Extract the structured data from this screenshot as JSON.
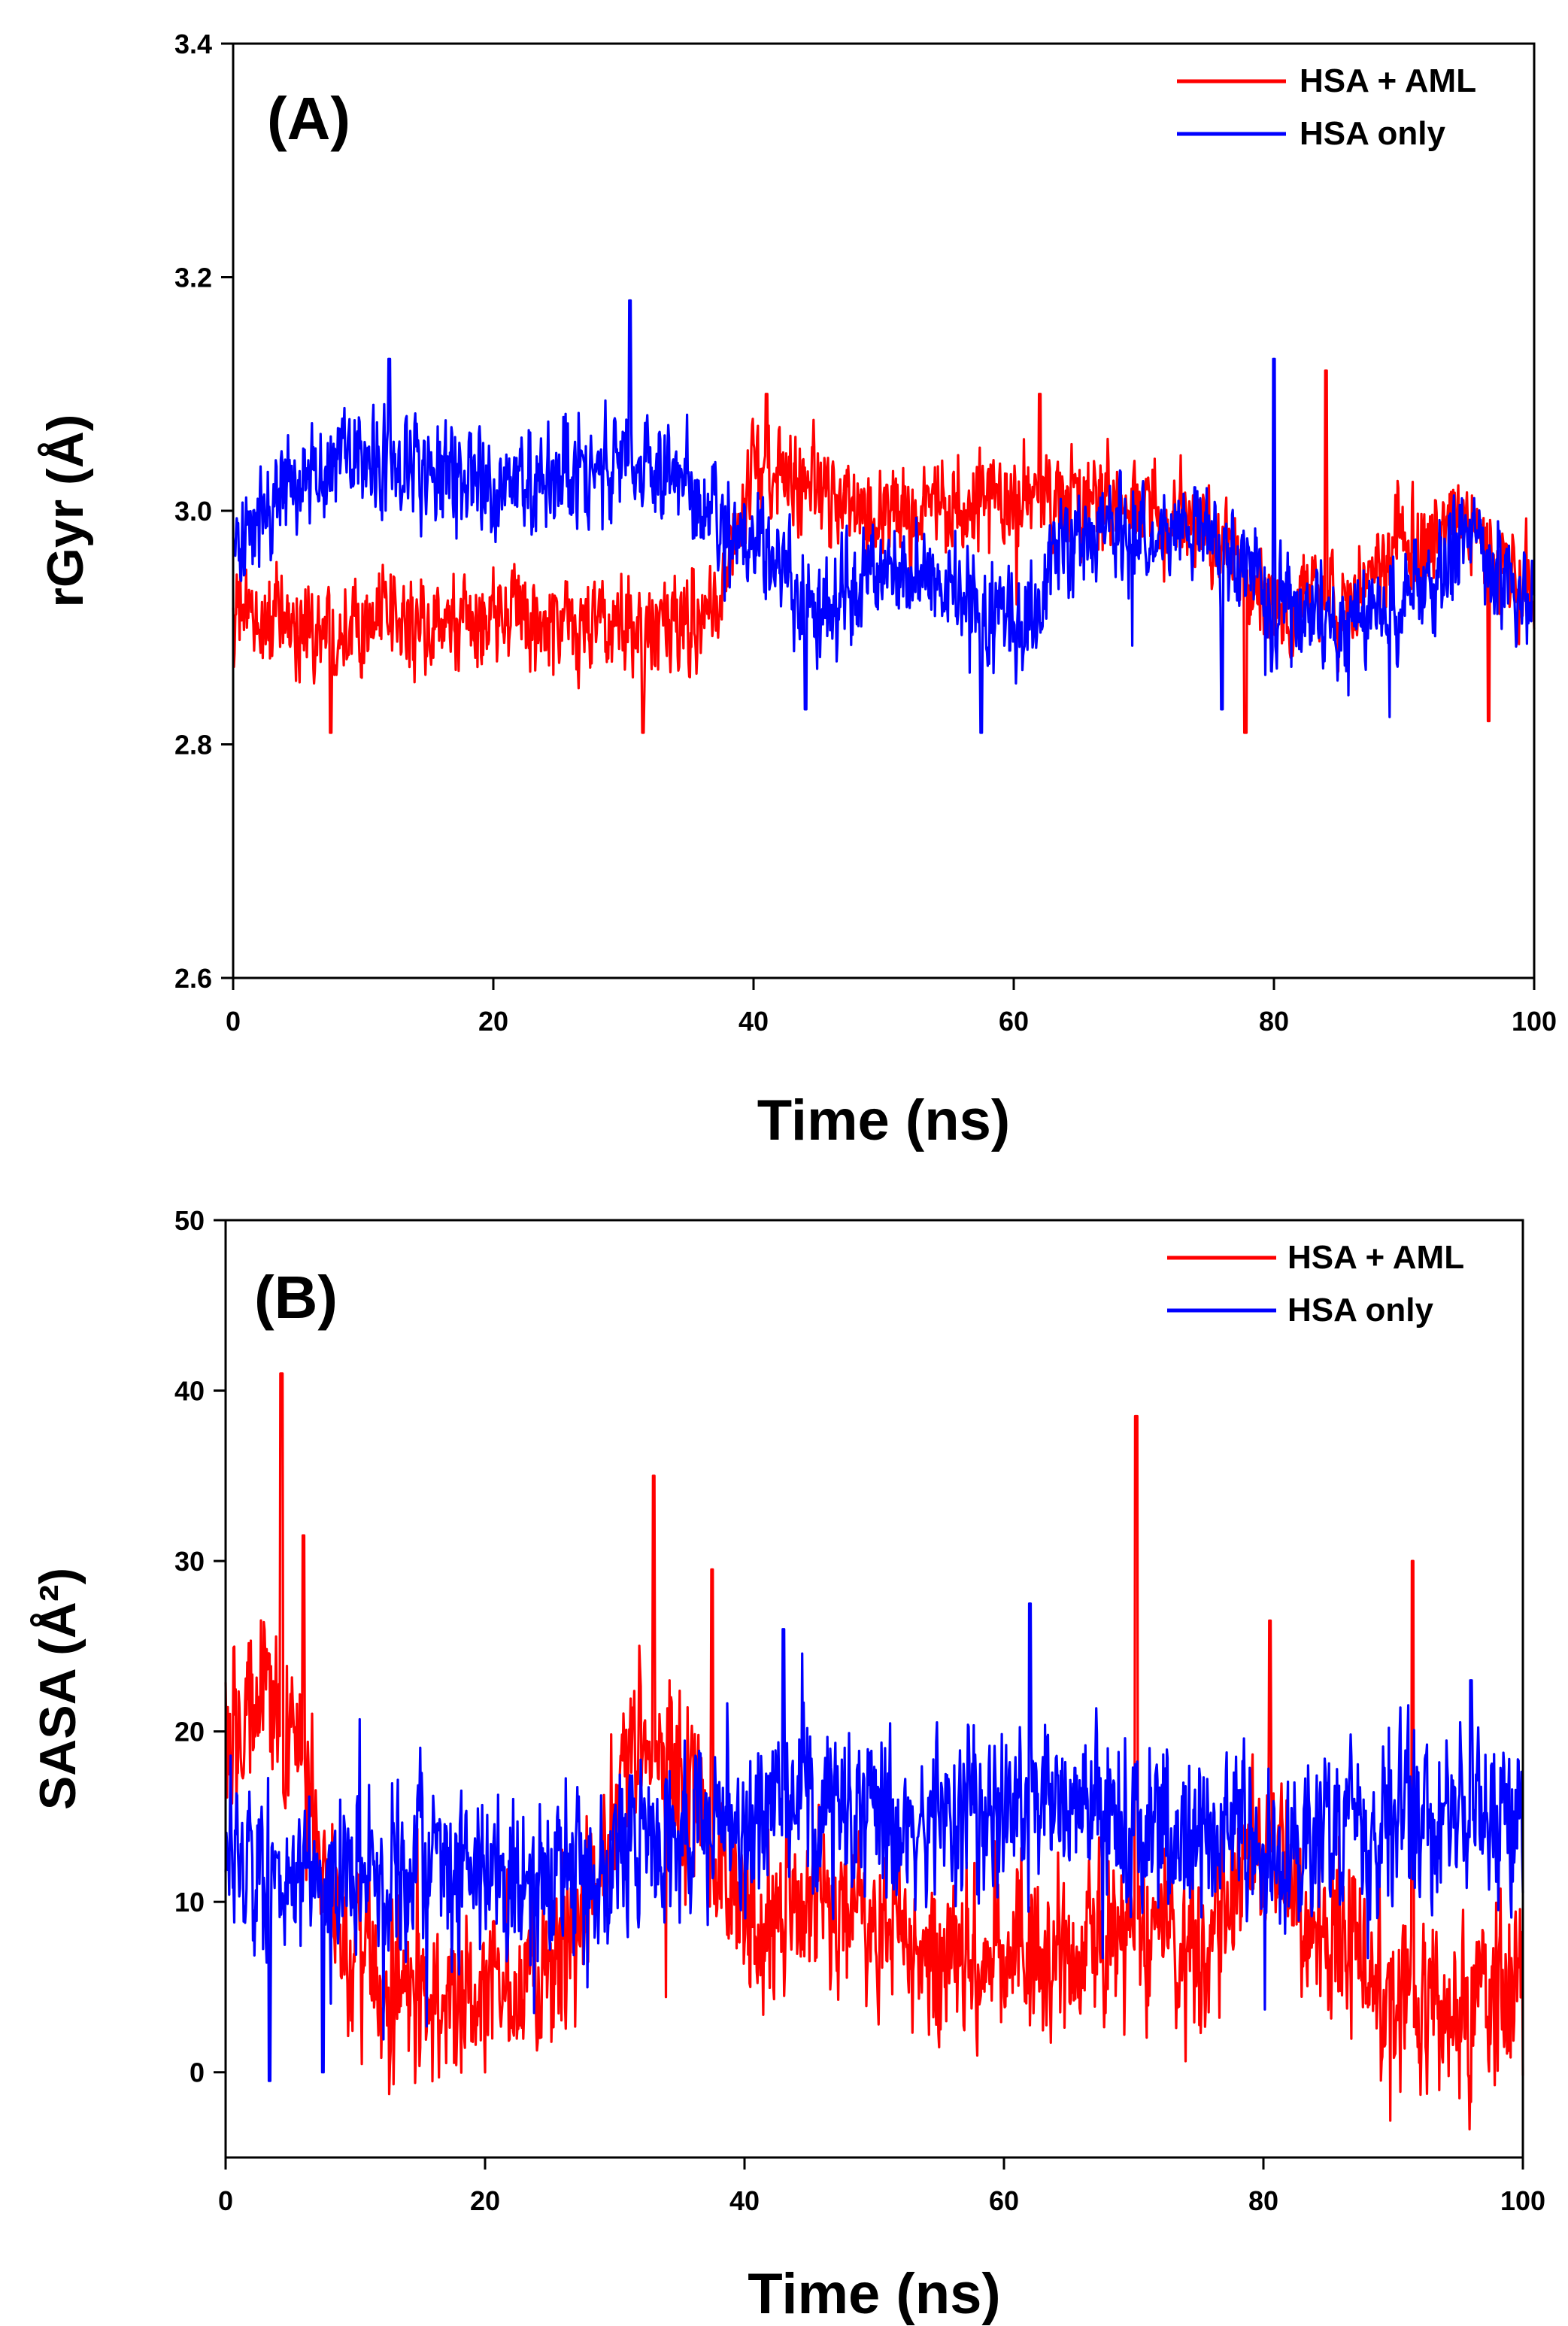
{
  "chart_data": [
    {
      "type": "line",
      "panel_label": "(A)",
      "xlabel": "Time (ns)",
      "ylabel": "rGyr (Å)",
      "xlim": [
        0,
        100
      ],
      "ylim": [
        2.6,
        3.4
      ],
      "xticks": [
        0,
        20,
        40,
        60,
        80,
        100
      ],
      "yticks": [
        2.6,
        2.8,
        3.0,
        3.2,
        3.4
      ],
      "ytick_labels": [
        "2.6",
        "2.8",
        "3.0",
        "3.2",
        "3.4"
      ],
      "xtick_labels": [
        "0",
        "20",
        "40",
        "60",
        "80",
        "100"
      ],
      "legend_position": "top-right",
      "series": [
        {
          "name": "HSA + AML",
          "color": "#ff0000",
          "x": [
            0,
            5,
            10,
            15,
            20,
            25,
            30,
            35,
            38,
            40,
            45,
            50,
            55,
            60,
            65,
            70,
            75,
            80,
            85,
            90,
            95,
            100
          ],
          "y": [
            2.91,
            2.9,
            2.91,
            2.9,
            2.91,
            2.9,
            2.9,
            2.9,
            2.95,
            3.03,
            3.02,
            3.0,
            3.0,
            3.01,
            3.01,
            3.0,
            2.99,
            2.91,
            2.92,
            2.97,
            2.99,
            2.92
          ],
          "noise": 0.03,
          "spikes": [
            [
              7.5,
              2.81
            ],
            [
              31.5,
              2.81
            ],
            [
              41,
              3.1
            ],
            [
              62,
              3.1
            ],
            [
              77.8,
              2.81
            ],
            [
              84,
              3.12
            ],
            [
              96.5,
              2.82
            ]
          ]
        },
        {
          "name": "HSA only",
          "color": "#0000ff",
          "x": [
            0,
            5,
            10,
            15,
            20,
            25,
            30,
            35,
            38,
            40,
            45,
            50,
            55,
            60,
            65,
            70,
            75,
            80,
            85,
            90,
            95,
            100
          ],
          "y": [
            2.97,
            3.03,
            3.04,
            3.04,
            3.02,
            3.03,
            3.05,
            3.03,
            2.98,
            2.98,
            2.91,
            2.96,
            2.93,
            2.9,
            2.98,
            2.98,
            2.98,
            2.92,
            2.9,
            2.92,
            2.98,
            2.91
          ],
          "noise": 0.032,
          "spikes": [
            [
              30.5,
              3.18
            ],
            [
              12,
              3.13
            ],
            [
              57.5,
              2.81
            ],
            [
              80,
              3.13
            ],
            [
              76,
              2.83
            ],
            [
              44,
              2.83
            ]
          ]
        }
      ]
    },
    {
      "type": "line",
      "panel_label": "(B)",
      "xlabel": "Time (ns)",
      "ylabel": "SASA (Å²)",
      "xlim": [
        0,
        100
      ],
      "ylim": [
        -5,
        50
      ],
      "xticks": [
        0,
        20,
        40,
        60,
        80,
        100
      ],
      "yticks": [
        0,
        10,
        20,
        30,
        40,
        50
      ],
      "ytick_labels": [
        "0",
        "10",
        "20",
        "30",
        "40",
        "50"
      ],
      "xtick_labels": [
        "0",
        "20",
        "40",
        "60",
        "80",
        "100"
      ],
      "legend_position": "top-right",
      "series": [
        {
          "name": "HSA + AML",
          "color": "#ff0000",
          "x": [
            0,
            3,
            6,
            9,
            12,
            15,
            20,
            25,
            28,
            32,
            36,
            40,
            45,
            50,
            55,
            60,
            65,
            70,
            75,
            80,
            85,
            90,
            95,
            100
          ],
          "y": [
            20,
            22,
            18,
            8,
            5,
            4,
            4,
            6,
            10,
            20,
            16,
            9,
            10,
            9,
            7,
            7,
            6,
            9,
            7,
            14,
            8,
            4,
            4,
            4
          ],
          "noise": 3.5,
          "spikes": [
            [
              4.3,
              41
            ],
            [
              33,
              35
            ],
            [
              70.2,
              38.5
            ],
            [
              91.5,
              30
            ],
            [
              80.5,
              26.5
            ],
            [
              37.5,
              29.5
            ],
            [
              6,
              31.5
            ]
          ]
        },
        {
          "name": "HSA only",
          "color": "#0000ff",
          "x": [
            0,
            3,
            6,
            9,
            12,
            15,
            20,
            25,
            30,
            35,
            40,
            45,
            50,
            55,
            60,
            65,
            70,
            75,
            80,
            85,
            90,
            95,
            100
          ],
          "y": [
            13,
            11,
            12,
            12,
            12,
            13,
            12,
            11,
            12,
            14,
            15,
            16,
            15,
            15,
            15,
            15,
            15,
            14,
            13,
            14,
            15,
            15,
            15
          ],
          "noise": 3.5,
          "spikes": [
            [
              3.4,
              -0.5
            ],
            [
              7.5,
              0
            ],
            [
              62,
              27.5
            ],
            [
              43,
              26
            ],
            [
              96,
              23
            ]
          ]
        }
      ]
    }
  ]
}
